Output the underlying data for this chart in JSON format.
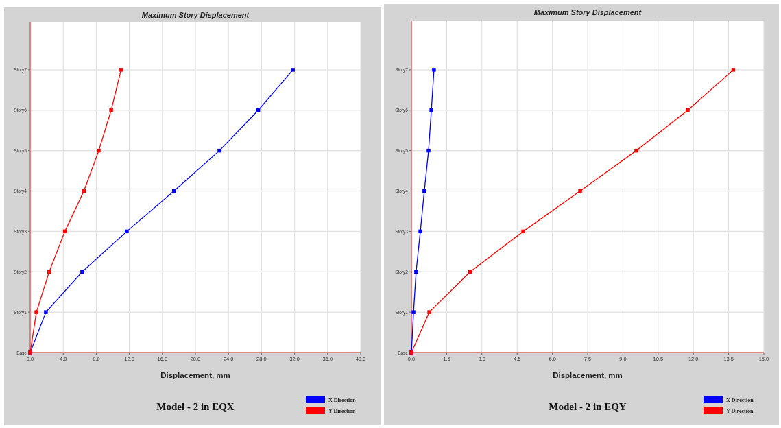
{
  "chart_data": [
    {
      "type": "line",
      "title": "Maximum Story Displacement",
      "xlabel": "Displacement, mm",
      "orientation": "horizontal",
      "categories": [
        null,
        "Story7",
        "Story6",
        "Story5",
        "Story4",
        "Story3",
        "Story2",
        "Story1",
        "Base"
      ],
      "xlim": [
        0,
        40
      ],
      "xticks": [
        {
          "value": 0,
          "label": "0.0"
        },
        {
          "value": 4,
          "label": "4.0"
        },
        {
          "value": 8,
          "label": "8.0"
        },
        {
          "value": 12,
          "label": "12.0"
        },
        {
          "value": 16,
          "label": "16.0"
        },
        {
          "value": 20,
          "label": "20.0"
        },
        {
          "value": 24,
          "label": "24.0"
        },
        {
          "value": 28,
          "label": "28.0"
        },
        {
          "value": 32,
          "label": "32.0"
        },
        {
          "value": 36,
          "label": "36.0"
        },
        {
          "value": 40,
          "label": "40.0"
        }
      ],
      "grid": true,
      "legend": "bottom right",
      "marker": "square",
      "line_style": "solid",
      "annotations": [
        "Model - 2 in EQX"
      ],
      "series": [
        {
          "name": "X Direction",
          "color": "#0000ff",
          "values": [
            null,
            31.8,
            27.6,
            22.9,
            17.4,
            11.7,
            6.3,
            1.9,
            0
          ]
        },
        {
          "name": "Y Direction",
          "color": "#ff0000",
          "values": [
            null,
            11.0,
            9.8,
            8.3,
            6.5,
            4.2,
            2.3,
            0.75,
            0
          ]
        }
      ]
    },
    {
      "type": "line",
      "title": "Maximum Story Displacement",
      "xlabel": "Displacement, mm",
      "orientation": "horizontal",
      "categories": [
        null,
        "Story7",
        "Story6",
        "Story5",
        "Story4",
        "Story3",
        "Story2",
        "Story1",
        "Base"
      ],
      "xlim": [
        0,
        15
      ],
      "xticks": [
        {
          "value": 0,
          "label": "0.0"
        },
        1.5,
        {
          "value": 3,
          "label": "3.0"
        },
        4.5,
        {
          "value": 6,
          "label": "6.0"
        },
        7.5,
        {
          "value": 9,
          "label": "9.0"
        },
        10.5,
        {
          "value": 12,
          "label": "12.0"
        },
        13.5,
        {
          "value": 15,
          "label": "15.0"
        }
      ],
      "grid": true,
      "legend": "bottom right",
      "marker": "square",
      "line_style": "solid",
      "annotations": [
        "Model - 2 in EQY"
      ],
      "series": [
        {
          "name": "X Direction",
          "color": "#0000ff",
          "values": [
            null,
            0.96,
            0.85,
            0.73,
            0.55,
            0.38,
            0.2,
            0.09,
            0
          ]
        },
        {
          "name": "Y Direction",
          "color": "#ff0000",
          "values": [
            null,
            13.7,
            11.76,
            9.57,
            7.18,
            4.76,
            2.5,
            0.76,
            0
          ]
        }
      ]
    }
  ]
}
